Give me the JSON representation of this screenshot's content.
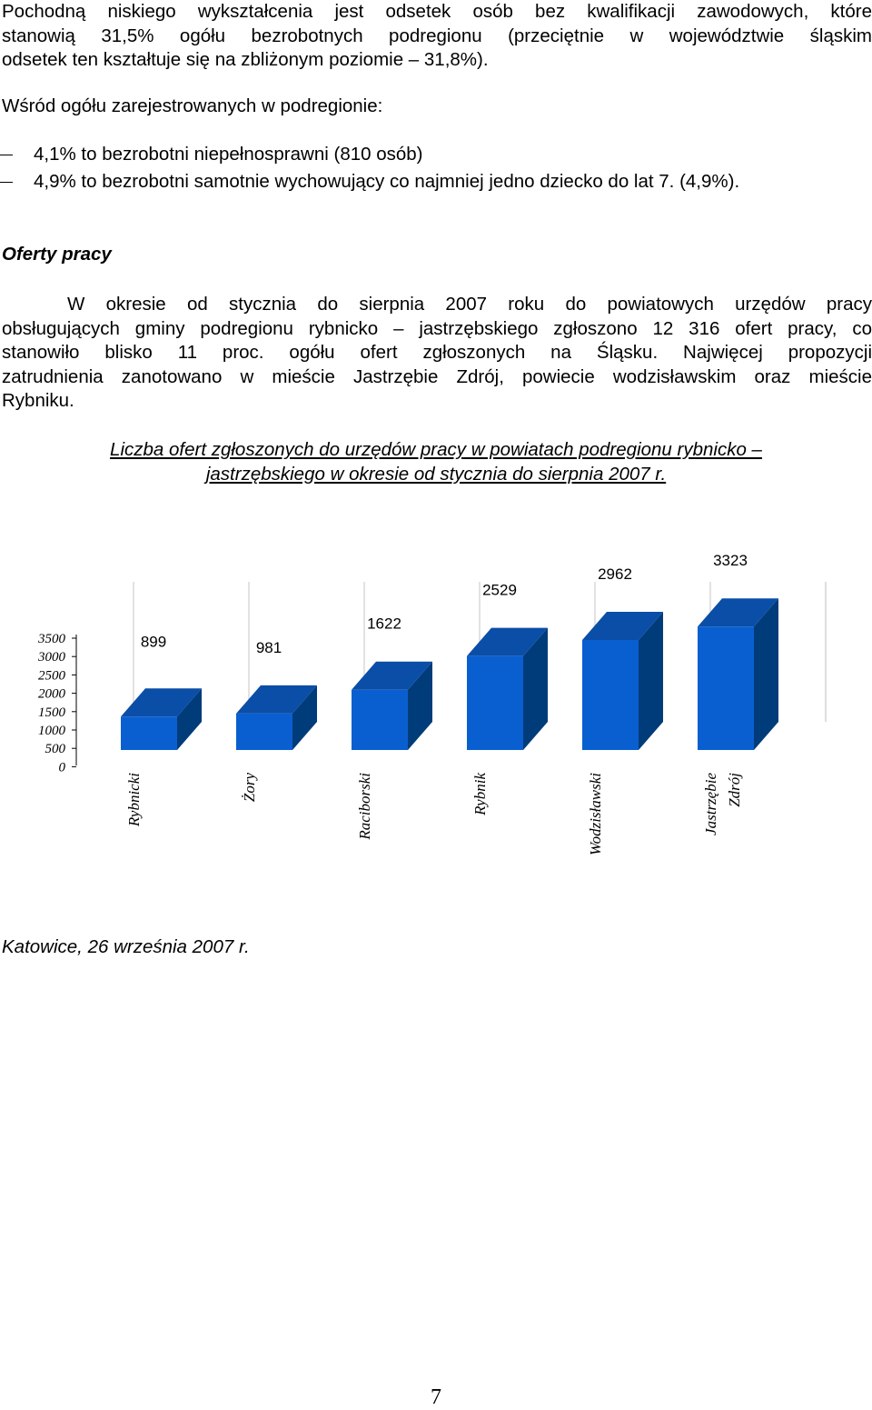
{
  "intro": {
    "line1": "Pochodną niskiego wykształcenia jest odsetek osób bez kwalifikacji zawodowych, które",
    "line2": "stanowią 31,5% ogółu bezrobotnych podregionu (przeciętnie w województwie śląskim",
    "line3": "odsetek ten kształtuje się na zbliżonym poziomie – 31,8%)."
  },
  "registered_intro": "Wśród ogółu zarejestrowanych w podregionie:",
  "bullets": [
    "4,1% to bezrobotni niepełnosprawni (810 osób)",
    "4,9% to bezrobotni samotnie wychowujący co najmniej jedno dziecko do lat 7. (4,9%)."
  ],
  "section_heading": "Oferty pracy",
  "offers_paragraph": {
    "line1": "W okresie od stycznia do sierpnia 2007 roku do powiatowych urzędów pracy",
    "line2": "obsługujących gminy podregionu rybnicko – jastrzębskiego zgłoszono 12 316 ofert pracy, co",
    "line3": "stanowiło blisko 11 proc. ogółu ofert zgłoszonych na Śląsku. Najwięcej propozycji",
    "line4": "zatrudnienia zanotowano w mieście Jastrzębie Zdrój, powiecie wodzisławskim oraz mieście",
    "line5": "Rybniku."
  },
  "chart_title": {
    "line1": "Liczba ofert zgłoszonych do urzędów pracy w powiatach podregionu rybnicko –",
    "line2": "jastrzębskiego w okresie od stycznia do sierpnia 2007 r."
  },
  "chart_data": {
    "type": "bar",
    "categories": [
      "Rybnicki",
      "Żory",
      "Raciborski",
      "Rybnik",
      "Wodzisławski",
      "Jastrzębie Zdrój"
    ],
    "values": [
      899,
      981,
      1622,
      2529,
      2962,
      3323
    ],
    "yticks": [
      "3500",
      "3000",
      "2500",
      "2000",
      "1500",
      "1000",
      "500",
      "0"
    ],
    "ylim": [
      0,
      3500
    ],
    "three_d": true,
    "bar_color": "#0a5fd0",
    "bar_side_color": "#003b7a",
    "bar_top_color": "#0b4ea8"
  },
  "footer": "Katowice, 26 września 2007 r.",
  "page_number": "7"
}
